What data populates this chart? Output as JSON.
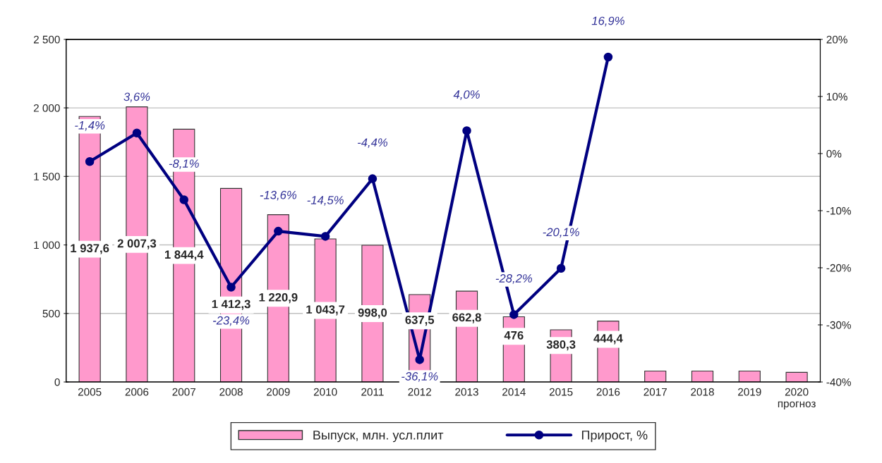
{
  "chart_data": {
    "type": "bar",
    "categories": [
      "2005",
      "2006",
      "2007",
      "2008",
      "2009",
      "2010",
      "2011",
      "2012",
      "2013",
      "2014",
      "2015",
      "2016",
      "2017",
      "2018",
      "2019",
      "2020\nпрогноз"
    ],
    "series": [
      {
        "name": "Выпуск, млн. усл.плит",
        "color": "#ff99cc",
        "values": [
          1937.6,
          2007.3,
          1844.4,
          1412.3,
          1220.9,
          1043.7,
          998.0,
          637.5,
          662.8,
          476,
          380.3,
          444.4,
          80,
          80,
          80,
          70
        ],
        "value_labels": [
          "1 937,6",
          "2 007,3",
          "1 844,4",
          "1 412,3",
          "1 220,9",
          "1 043,7",
          "998,0",
          "637,5",
          "662,8",
          "476",
          "380,3",
          "444,4",
          null,
          null,
          null,
          null
        ]
      },
      {
        "name": "Прирост, %",
        "type": "line",
        "axis": "y2",
        "color": "#000080",
        "marker": "circle",
        "line_style": "solid",
        "values": [
          -1.4,
          3.6,
          -8.1,
          -23.4,
          -13.6,
          -14.5,
          -4.4,
          -36.1,
          4.0,
          -28.2,
          -20.1,
          16.9,
          null,
          null,
          null,
          null
        ],
        "value_labels": [
          "-1,4%",
          "3,6%",
          "-8,1%",
          "-23,4%",
          "-13,6%",
          "-14,5%",
          "-4,4%",
          "-36,1%",
          "4,0%",
          "-28,2%",
          "-20,1%",
          "16,9%",
          null,
          null,
          null,
          null
        ]
      }
    ],
    "ylim": [
      0,
      2500
    ],
    "yticks": [
      0,
      500,
      {
        "value": 1000,
        "label": "1 000"
      },
      {
        "value": 1500,
        "label": "1 500"
      },
      {
        "value": 2000,
        "label": "2 000"
      },
      {
        "value": 2500,
        "label": "2 500"
      }
    ],
    "y2lim": [
      -40,
      20
    ],
    "y2ticks": [
      {
        "value": -40,
        "label": "-40%"
      },
      {
        "value": -30,
        "label": "-30%"
      },
      {
        "value": -20,
        "label": "-20%"
      },
      {
        "value": -10,
        "label": "-10%"
      },
      {
        "value": 0,
        "label": "0%"
      },
      {
        "value": 10,
        "label": "10%"
      },
      {
        "value": 20,
        "label": "20%"
      }
    ],
    "grid": "y",
    "legend": "bottom"
  }
}
